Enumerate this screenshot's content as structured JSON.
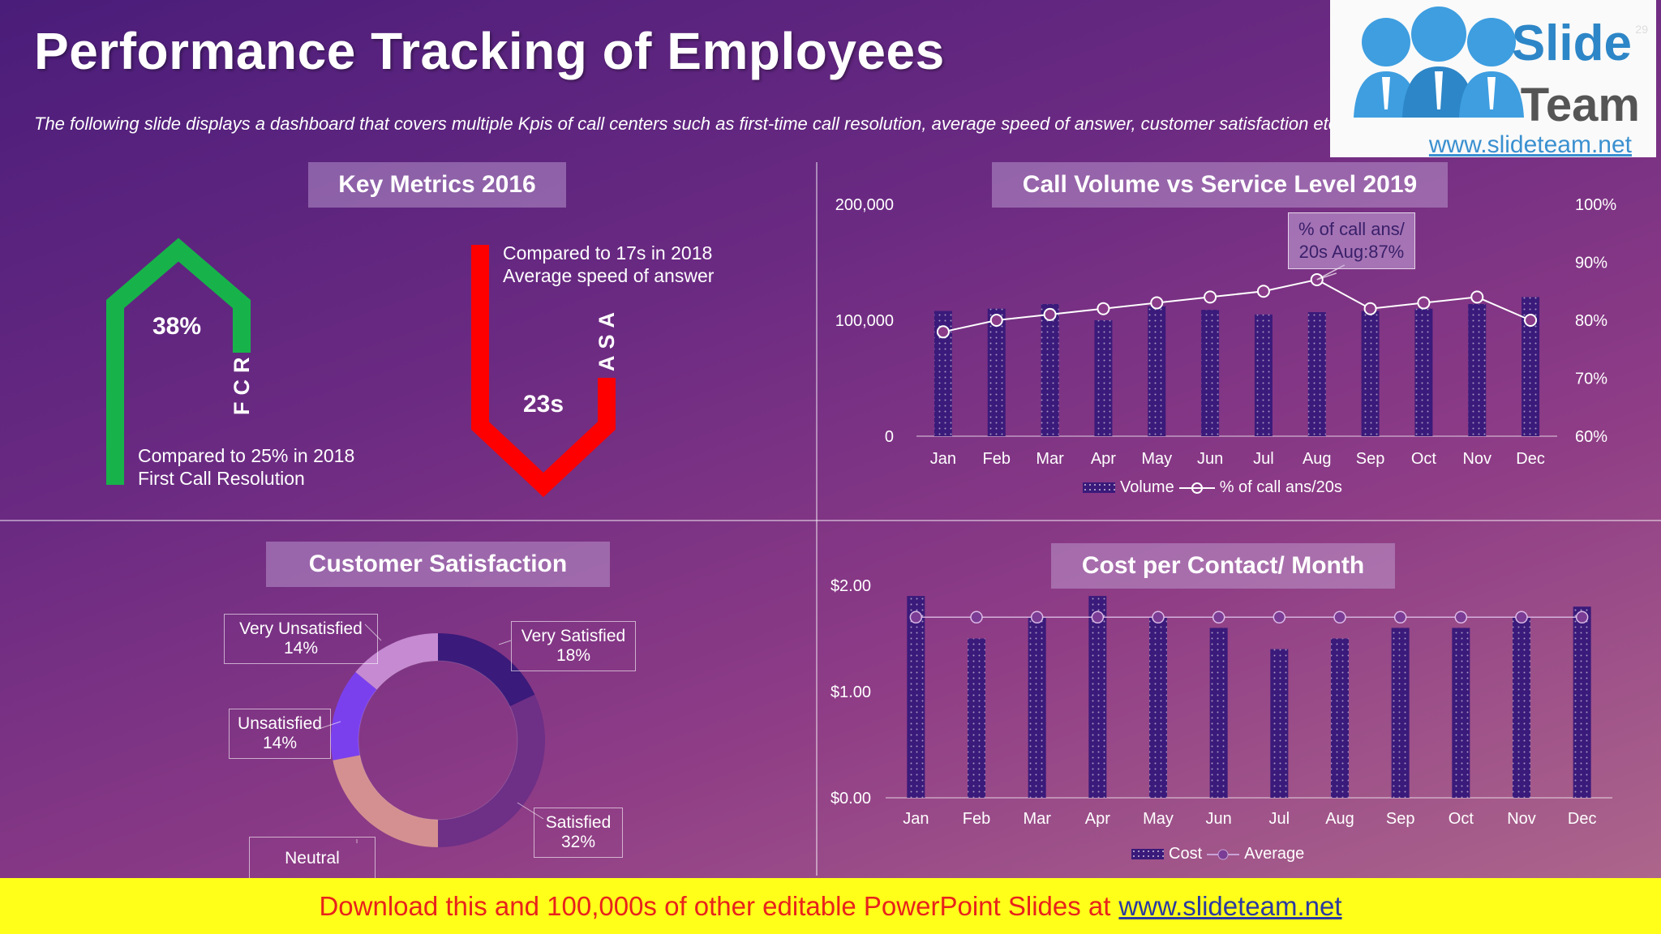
{
  "title": "Performance Tracking of Employees",
  "subtitle": "The following slide displays a dashboard that covers multiple Kpis of call centers such as first-time call resolution, average speed of answer, customer satisfaction etc.",
  "logo": {
    "line1": "Slide",
    "line2": "Team",
    "url": "www.slideteam.net",
    "page_number": "29"
  },
  "key_metrics": {
    "title": "Key Metrics 2016",
    "fcr": {
      "value": "38%",
      "label": "FCR",
      "compare": "Compared to 25% in 2018",
      "name": "First Call Resolution",
      "color": "#17b34a"
    },
    "asa": {
      "value": "23s",
      "label": "ASA",
      "compare": "Compared to 17s in 2018",
      "name": "Average speed of answer",
      "color": "#ff0000"
    }
  },
  "customer_satisfaction": {
    "title": "Customer Satisfaction",
    "labels": {
      "very_satisfied": "Very Satisfied",
      "very_satisfied_pct": "18%",
      "satisfied": "Satisfied",
      "satisfied_pct": "32%",
      "neutral": "Neutral",
      "unsatisfied": "Unsatisfied",
      "unsatisfied_pct": "14%",
      "very_unsatisfied": "Very Unsatisfied",
      "very_unsatisfied_pct": "14%"
    }
  },
  "banner": {
    "text": "Download this and 100,000s of other editable PowerPoint Slides at",
    "link": "www.slideteam.net"
  },
  "chart_data": [
    {
      "type": "bar",
      "title": "Call Volume vs Service Level 2019",
      "categories": [
        "Jan",
        "Feb",
        "Mar",
        "Apr",
        "May",
        "Jun",
        "Jul",
        "Aug",
        "Sep",
        "Oct",
        "Nov",
        "Dec"
      ],
      "ylim": [
        0,
        200000
      ],
      "y_ticks": [
        "0",
        "100,000",
        "200,000"
      ],
      "y2lim": [
        60,
        100
      ],
      "y2_ticks": [
        "60%",
        "70%",
        "80%",
        "90%",
        "100%"
      ],
      "series": [
        {
          "name": "Volume",
          "type": "bar",
          "values": [
            108000,
            110000,
            114000,
            100000,
            112000,
            109000,
            105000,
            107000,
            108000,
            110000,
            114000,
            120000
          ]
        },
        {
          "name": "% of call ans/20s",
          "type": "line",
          "axis": "secondary",
          "values": [
            78,
            80,
            81,
            82,
            83,
            84,
            85,
            87,
            82,
            83,
            84,
            80
          ]
        }
      ],
      "annotation": {
        "line1": "% of call ans/",
        "line2": "20s Aug:87%"
      },
      "legend": "bottom"
    },
    {
      "type": "bar",
      "title": "Cost per Contact/ Month",
      "categories": [
        "Jan",
        "Feb",
        "Mar",
        "Apr",
        "May",
        "Jun",
        "Jul",
        "Aug",
        "Sep",
        "Oct",
        "Nov",
        "Dec"
      ],
      "ylim": [
        0,
        2.0
      ],
      "y_ticks": [
        "$0.00",
        "$1.00",
        "$2.00"
      ],
      "series": [
        {
          "name": "Cost",
          "type": "bar",
          "values": [
            1.9,
            1.5,
            1.7,
            1.9,
            1.7,
            1.6,
            1.4,
            1.5,
            1.6,
            1.6,
            1.7,
            1.8
          ]
        },
        {
          "name": "Average",
          "type": "line",
          "values": [
            1.7,
            1.7,
            1.7,
            1.7,
            1.7,
            1.7,
            1.7,
            1.7,
            1.7,
            1.7,
            1.7,
            1.7
          ]
        }
      ],
      "legend": "bottom"
    },
    {
      "type": "pie",
      "title": "Customer Satisfaction",
      "categories": [
        "Very Satisfied",
        "Satisfied",
        "Neutral",
        "Unsatisfied",
        "Very Unsatisfied"
      ],
      "values": [
        18,
        32,
        22,
        14,
        14
      ],
      "colors": [
        "#3a1a7a",
        "#6e2f86",
        "#d49090",
        "#7b40ee",
        "#c58ad2"
      ]
    }
  ]
}
